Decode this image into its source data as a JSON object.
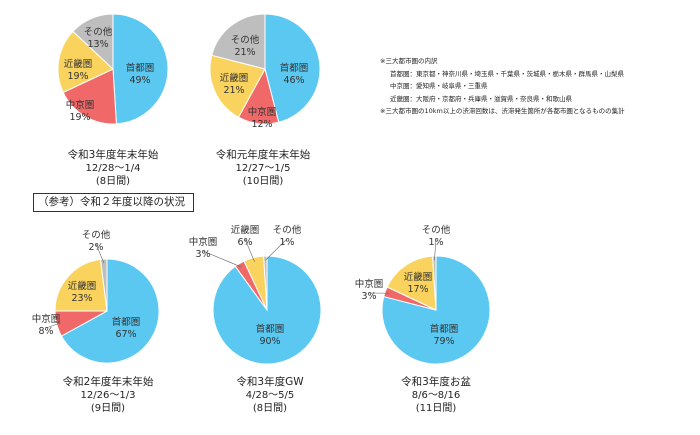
{
  "chart_data": [
    {
      "type": "pie",
      "title": "令和3年度年末年始",
      "period": "12/28〜1/4",
      "days": "(8日間)",
      "slices": [
        {
          "name": "首都圏",
          "value": 49,
          "label": "49%",
          "color": "#5BC8F2"
        },
        {
          "name": "中京圏",
          "value": 19,
          "label": "19%",
          "color": "#F06868"
        },
        {
          "name": "近畿圏",
          "value": 19,
          "label": "19%",
          "color": "#FAD35E"
        },
        {
          "name": "その他",
          "value": 13,
          "label": "13%",
          "color": "#BEBEBE"
        }
      ]
    },
    {
      "type": "pie",
      "title": "令和元年度年末年始",
      "period": "12/27〜1/5",
      "days": "(10日間)",
      "slices": [
        {
          "name": "首都圏",
          "value": 46,
          "label": "46%",
          "color": "#5BC8F2"
        },
        {
          "name": "中京圏",
          "value": 12,
          "label": "12%",
          "color": "#F06868"
        },
        {
          "name": "近畿圏",
          "value": 21,
          "label": "21%",
          "color": "#FAD35E"
        },
        {
          "name": "その他",
          "value": 21,
          "label": "21%",
          "color": "#BEBEBE"
        }
      ]
    },
    {
      "type": "pie",
      "title": "令和2年度年末年始",
      "period": "12/26〜1/3",
      "days": "(9日間)",
      "slices": [
        {
          "name": "首都圏",
          "value": 67,
          "label": "67%",
          "color": "#5BC8F2"
        },
        {
          "name": "中京圏",
          "value": 8,
          "label": "8%",
          "color": "#F06868"
        },
        {
          "name": "近畿圏",
          "value": 23,
          "label": "23%",
          "color": "#FAD35E"
        },
        {
          "name": "その他",
          "value": 2,
          "label": "2%",
          "color": "#BEBEBE"
        }
      ]
    },
    {
      "type": "pie",
      "title": "令和3年度GW",
      "period": "4/28〜5/5",
      "days": "(8日間)",
      "slices": [
        {
          "name": "首都圏",
          "value": 90,
          "label": "90%",
          "color": "#5BC8F2"
        },
        {
          "name": "中京圏",
          "value": 3,
          "label": "3%",
          "color": "#F06868"
        },
        {
          "name": "近畿圏",
          "value": 6,
          "label": "6%",
          "color": "#FAD35E"
        },
        {
          "name": "その他",
          "value": 1,
          "label": "1%",
          "color": "#BEBEBE"
        }
      ]
    },
    {
      "type": "pie",
      "title": "令和3年度お盆",
      "period": "8/6〜8/16",
      "days": "(11日間)",
      "slices": [
        {
          "name": "首都圏",
          "value": 79,
          "label": "79%",
          "color": "#5BC8F2"
        },
        {
          "name": "中京圏",
          "value": 3,
          "label": "3%",
          "color": "#F06868"
        },
        {
          "name": "近畿圏",
          "value": 17,
          "label": "17%",
          "color": "#FAD35E"
        },
        {
          "name": "その他",
          "value": 1,
          "label": "1%",
          "color": "#BEBEBE"
        }
      ]
    }
  ],
  "reference_heading": "（参考）令和２年度以降の状況",
  "notes": {
    "title": "※三大都市圏の内訳",
    "shutoken": "首都圏：東京都・神奈川県・埼玉県・千葉県・茨城県・栃木県・群馬県・山梨県",
    "chukyo": "中京圏：愛知県・岐阜県・三重県",
    "kinki": "近畿圏：大阪府・京都府・兵庫県・滋賀県・奈良県・和歌山県",
    "footnote": "※三大都市圏の10km以上の渋滞回数は、渋滞発生箇所が各都市圏となるものの集計"
  }
}
